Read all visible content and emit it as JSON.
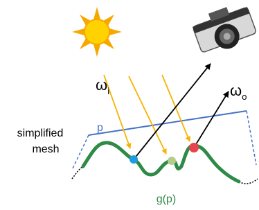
{
  "labels": {
    "simplified": "simplified",
    "mesh": "mesh",
    "p": "p",
    "omega_i": {
      "text": "ω",
      "sub": "i"
    },
    "omega_o": {
      "text": "ω",
      "sub": "o"
    },
    "g": "g(p)"
  }
}
